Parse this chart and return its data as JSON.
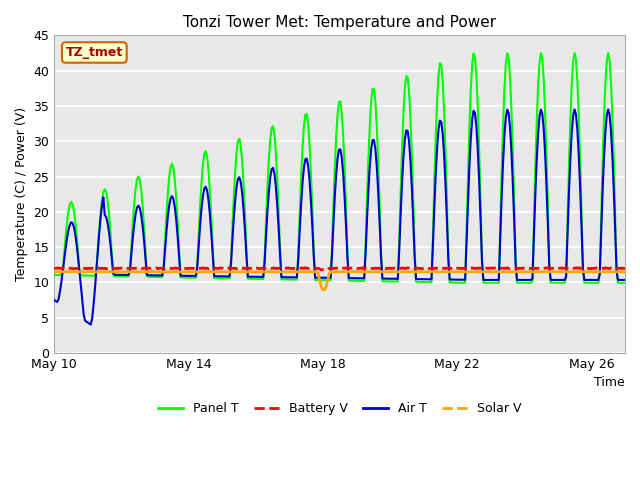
{
  "title": "Tonzi Tower Met: Temperature and Power",
  "xlabel": "Time",
  "ylabel": "Temperature (C) / Power (V)",
  "ylim": [
    0,
    45
  ],
  "yticks": [
    0,
    5,
    10,
    15,
    20,
    25,
    30,
    35,
    40,
    45
  ],
  "xtick_labels": [
    "May 10",
    "May 14",
    "May 18",
    "May 22",
    "May 26"
  ],
  "xtick_positions": [
    0,
    4,
    8,
    12,
    16
  ],
  "xlim": [
    0,
    17
  ],
  "legend_labels": [
    "Panel T",
    "Battery V",
    "Air T",
    "Solar V"
  ],
  "legend_colors": [
    "#00ff00",
    "#ff0000",
    "#0000cd",
    "#ffa500"
  ],
  "annotation_text": "TZ_tmet",
  "annotation_bg": "#ffffcc",
  "annotation_border": "#cc6600",
  "annotation_text_color": "#aa0000",
  "battery_v_base": 12.0,
  "solar_v_base": 11.5,
  "line_width": 1.5,
  "grid_color": "#ffffff",
  "plot_bg_color": "#e8e8e8",
  "fig_bg_color": "#ffffff"
}
